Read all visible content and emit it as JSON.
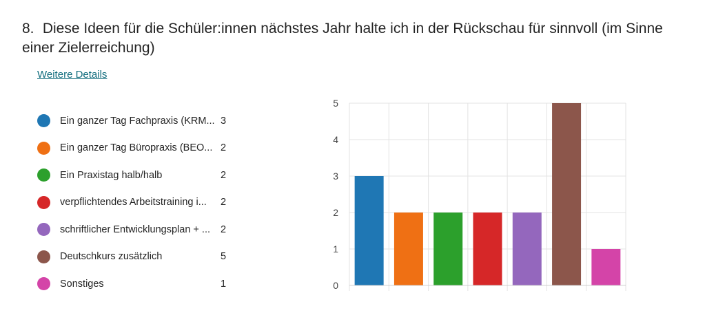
{
  "question": {
    "number": "8.",
    "title": "Diese Ideen für die Schüler:innen nächstes Jahr halte ich in der Rückschau für sinnvoll (im Sinne einer Zielerreichung)"
  },
  "details_link": "Weitere Details",
  "legend": [
    {
      "label": "Ein ganzer Tag Fachpraxis (KRM...",
      "count": "3",
      "color": "#1f77b4"
    },
    {
      "label": "Ein ganzer Tag Büropraxis (BEO...",
      "count": "2",
      "color": "#ef7014"
    },
    {
      "label": "Ein Praxistag halb/halb",
      "count": "2",
      "color": "#2ca02c"
    },
    {
      "label": "verpflichtendes Arbeitstraining i...",
      "count": "2",
      "color": "#d62728"
    },
    {
      "label": "schriftlicher Entwicklungsplan + ...",
      "count": "2",
      "color": "#9467bd"
    },
    {
      "label": "Deutschkurs zusätzlich",
      "count": "5",
      "color": "#8c564b"
    },
    {
      "label": "Sonstiges",
      "count": "1",
      "color": "#d444a8"
    }
  ],
  "chart_data": {
    "type": "bar",
    "categories": [
      "Ein ganzer Tag Fachpraxis (KRM...",
      "Ein ganzer Tag Büropraxis (BEO...",
      "Ein Praxistag halb/halb",
      "verpflichtendes Arbeitstraining i...",
      "schriftlicher Entwicklungsplan + ...",
      "Deutschkurs zusätzlich",
      "Sonstiges"
    ],
    "values": [
      3,
      2,
      2,
      2,
      2,
      5,
      1
    ],
    "colors": [
      "#1f77b4",
      "#ef7014",
      "#2ca02c",
      "#d62728",
      "#9467bd",
      "#8c564b",
      "#d444a8"
    ],
    "yticks": [
      "0",
      "1",
      "2",
      "3",
      "4",
      "5"
    ],
    "ylim": [
      0,
      5
    ],
    "grid": true,
    "legend_position": "left"
  }
}
